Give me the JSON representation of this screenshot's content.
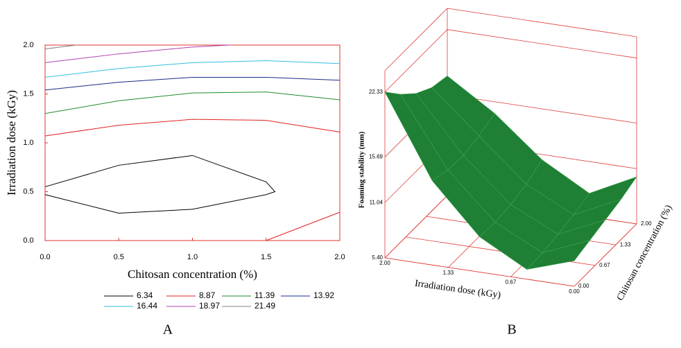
{
  "chart_data": [
    {
      "type": "contour",
      "caption": "A",
      "x_label": "Chitosan concentration (%)",
      "y_label": "Irradiation dose (kGy)",
      "xlim": [
        0,
        2
      ],
      "ylim": [
        0,
        2
      ],
      "xticks": [
        {
          "value": 0,
          "label": "0.0"
        },
        0.5,
        {
          "value": 1,
          "label": "1.0"
        },
        1.5,
        {
          "value": 2,
          "label": "2.0"
        }
      ],
      "yticks": [
        {
          "value": 0,
          "label": "0.0"
        },
        0.5,
        {
          "value": 1,
          "label": "1.0"
        },
        1.5,
        {
          "value": 2,
          "label": "2.0"
        }
      ],
      "frame_color": "#e03030",
      "series": [
        {
          "name": "6.34",
          "color": "#000000",
          "x": [
            0,
            0.5,
            1.0,
            1.5,
            1.56,
            1.5,
            1.0,
            0.5,
            0
          ],
          "y": [
            0.55,
            0.77,
            0.87,
            0.6,
            0.5,
            0.47,
            0.32,
            0.28,
            0.47
          ]
        },
        {
          "name": "8.87",
          "color": "#e02020",
          "x": [
            0,
            0.5,
            1.0,
            1.5,
            2.0,
            null,
            1.5,
            2.0
          ],
          "y": [
            1.07,
            1.18,
            1.24,
            1.23,
            1.11,
            null,
            0,
            0.29
          ]
        },
        {
          "name": "11.39",
          "color": "#1f8a2e",
          "x": [
            0,
            0.5,
            1.0,
            1.5,
            2.0
          ],
          "y": [
            1.3,
            1.43,
            1.51,
            1.52,
            1.44
          ]
        },
        {
          "name": "13.92",
          "color": "#1a2a8a",
          "x": [
            0,
            0.5,
            1.0,
            1.5,
            2.0
          ],
          "y": [
            1.54,
            1.62,
            1.67,
            1.67,
            1.64
          ]
        },
        {
          "name": "16.44",
          "color": "#33bde0",
          "x": [
            0,
            0.5,
            1.0,
            1.5,
            2.0
          ],
          "y": [
            1.67,
            1.76,
            1.82,
            1.84,
            1.81
          ]
        },
        {
          "name": "18.97",
          "color": "#b040b0",
          "x": [
            0,
            0.5,
            1.0,
            1.25
          ],
          "y": [
            1.82,
            1.91,
            1.98,
            2.0
          ]
        },
        {
          "name": "21.49",
          "color": "#808080",
          "x": [
            0,
            0.21
          ],
          "y": [
            1.96,
            2.0
          ]
        }
      ]
    },
    {
      "type": "surface3d",
      "caption": "B",
      "x_label": "Irradiation dose (kGy)",
      "y_label": "Chitosan concentration (%)",
      "z_label": "Foaming stability (mm)",
      "xlim": [
        0,
        2
      ],
      "ylim": [
        0,
        2
      ],
      "zlim": [
        5.4,
        24.5
      ],
      "xticks": [
        {
          "value": 2,
          "label": "2.00"
        },
        1.33,
        0.67,
        {
          "value": 0,
          "label": "0.00"
        }
      ],
      "yticks": [
        {
          "value": 0,
          "label": "0.00"
        },
        0.67,
        1.33,
        {
          "value": 2,
          "label": "2.00"
        }
      ],
      "zticks": [
        {
          "value": 5.4,
          "label": "5.40"
        },
        11.04,
        15.69,
        22.33
      ],
      "x": [
        0,
        0.5,
        1,
        1.5,
        2
      ],
      "y": [
        0,
        0.5,
        1,
        1.5,
        2
      ],
      "z": [
        [
          8.0,
          8.5,
          9.0,
          9.5,
          10.2
        ],
        [
          6.4,
          6.5,
          6.8,
          7.2,
          7.8
        ],
        [
          9.0,
          8.9,
          9.1,
          9.6,
          10.5
        ],
        [
          14.0,
          13.5,
          13.4,
          13.8,
          14.5
        ],
        [
          22.33,
          20.5,
          19.0,
          18.0,
          17.6
        ]
      ],
      "color": "#1f7f35",
      "box_color": "#e03a3a"
    }
  ]
}
